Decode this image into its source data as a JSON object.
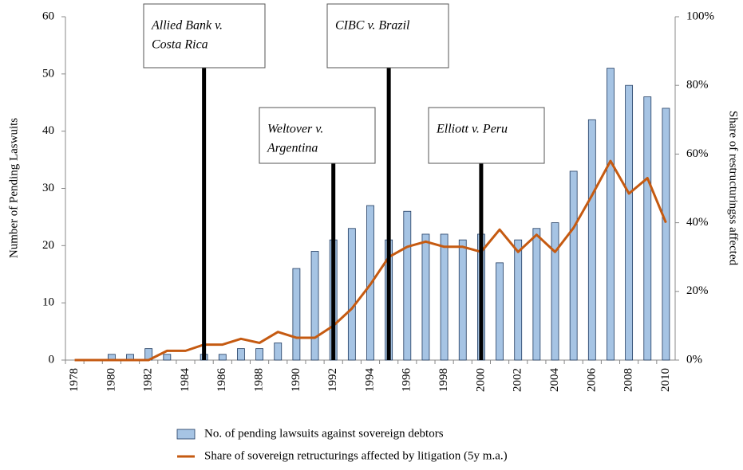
{
  "chart_data": {
    "type": "bar+line",
    "categories": [
      "1978",
      null,
      "1980",
      null,
      "1982",
      null,
      "1984",
      null,
      "1986",
      null,
      "1988",
      null,
      "1990",
      null,
      "1992",
      null,
      "1994",
      null,
      "1996",
      null,
      "1998",
      null,
      "2000",
      null,
      "2002",
      null,
      "2004",
      null,
      "2006",
      null,
      "2008",
      null,
      "2010"
    ],
    "series": [
      {
        "name": "No. of pending lawsuits against sovereign debtors",
        "type": "bar",
        "color": "#a6c4e4",
        "axis": "y",
        "values": [
          0,
          0,
          1,
          1,
          2,
          1,
          0,
          1,
          1,
          2,
          2,
          3,
          16,
          19,
          21,
          23,
          27,
          21,
          26,
          22,
          22,
          21,
          22,
          17,
          21,
          23,
          24,
          33,
          42,
          51,
          48,
          46,
          44
        ]
      },
      {
        "name": "Share of sovereign retructurings affected by litigation (5y m.a.)",
        "type": "line",
        "color": "#c55a11",
        "axis": "y2",
        "values": [
          0,
          0,
          0,
          0,
          0,
          2.7,
          2.7,
          4.5,
          4.5,
          6.2,
          5,
          8.2,
          6.5,
          6.5,
          10,
          15,
          22,
          30,
          33,
          34.5,
          33,
          33,
          31.5,
          38,
          31.5,
          36.5,
          31.5,
          38.5,
          48,
          58,
          48.5,
          53,
          40
        ]
      }
    ],
    "ylabel": "Number of Pending Laswuits",
    "y2label": "Share of restructuringss affected",
    "ylim": [
      0,
      60
    ],
    "yticks": [
      0,
      10,
      20,
      30,
      40,
      50,
      60
    ],
    "y2lim": [
      0,
      100
    ],
    "y2ticks": [
      {
        "value": 0,
        "label": "0%"
      },
      {
        "value": 20,
        "label": "20%"
      },
      {
        "value": 40,
        "label": "40%"
      },
      {
        "value": 60,
        "label": "60%"
      },
      {
        "value": 80,
        "label": "80%"
      },
      {
        "value": 100,
        "label": "100%"
      }
    ],
    "annotations": [
      {
        "lines": [
          "Allied Bank v.",
          "Costa Rica"
        ],
        "category": 7
      },
      {
        "lines": [
          "Weltover v.",
          "Argentina"
        ],
        "category": 14
      },
      {
        "lines": [
          "CIBC v. Brazil"
        ],
        "category": 17
      },
      {
        "lines": [
          "Elliott v. Peru"
        ],
        "category": 22
      }
    ],
    "legend": "bottom"
  }
}
